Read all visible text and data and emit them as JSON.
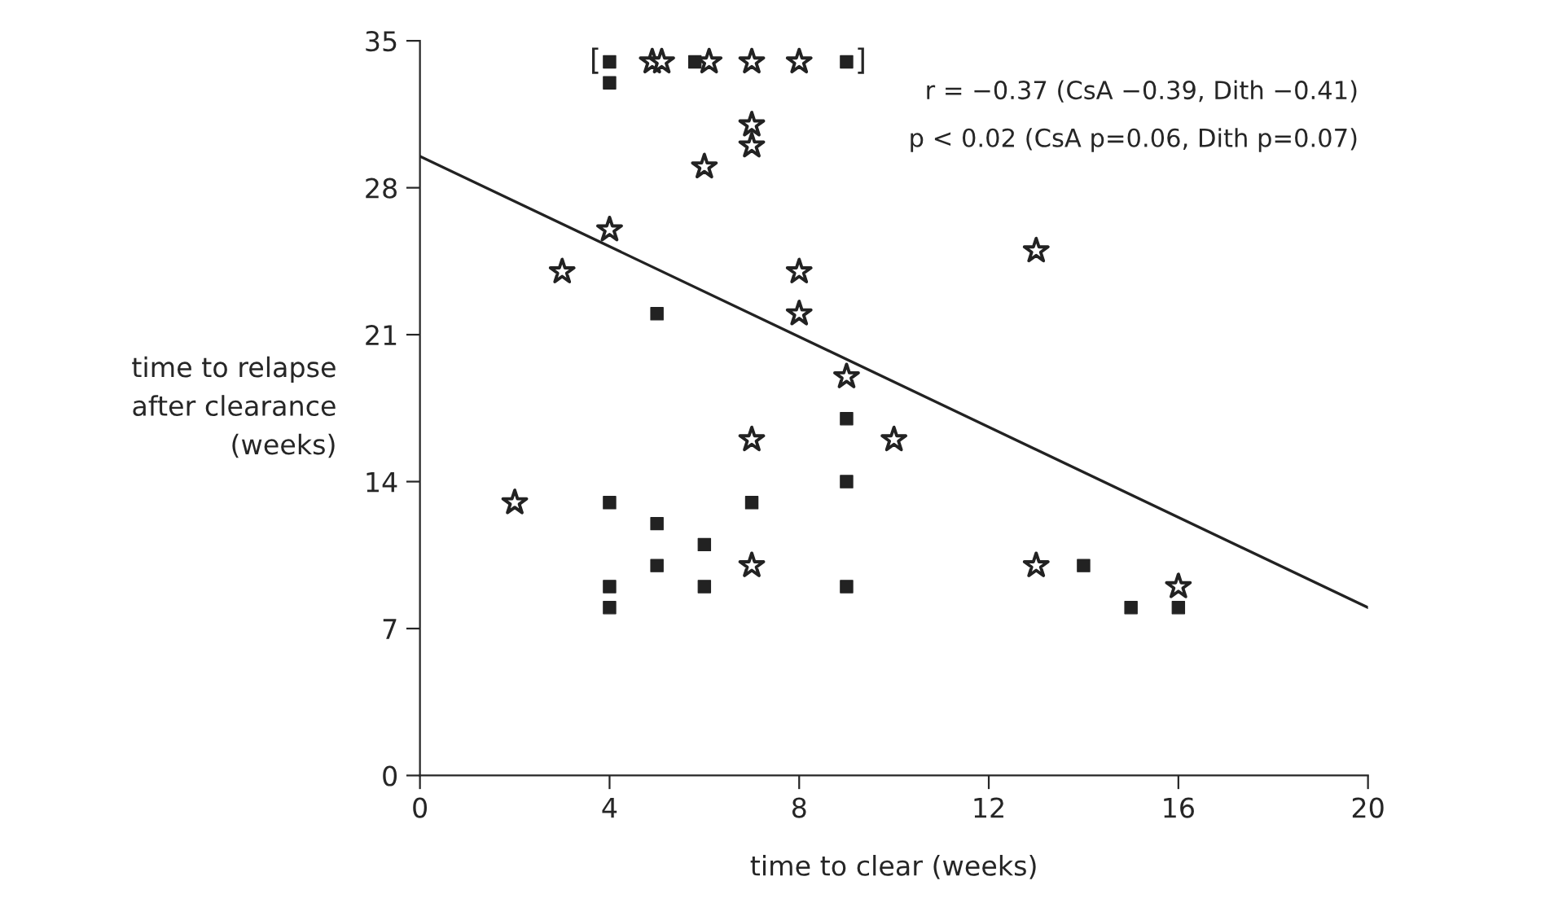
{
  "chart_data": {
    "type": "scatter",
    "xlabel": "time to clear (weeks)",
    "ylabel": "time to relapse\nafter clearance\n(weeks)",
    "xlim": [
      0,
      20
    ],
    "xticks": [
      0,
      4,
      8,
      12,
      16,
      20
    ],
    "ylim": [
      0,
      35
    ],
    "yticks": [
      0,
      7,
      14,
      21,
      28,
      35
    ],
    "grid": false,
    "legend": false,
    "series": [
      {
        "marker": "square",
        "color": "#222222",
        "x": [
          4,
          4,
          5.8,
          9,
          5,
          9,
          9,
          4,
          5,
          6,
          7,
          5,
          6,
          4,
          4,
          9,
          14,
          15,
          16
        ],
        "values": [
          34,
          33,
          34,
          34,
          22,
          17,
          14,
          13,
          12,
          11,
          13,
          10,
          9,
          9,
          8,
          9,
          10,
          8,
          8
        ]
      },
      {
        "marker": "star",
        "color": "#222222",
        "x": [
          4.9,
          5.1,
          6.1,
          7,
          8,
          7,
          7,
          6,
          4,
          3,
          8,
          8,
          9,
          10,
          7,
          2,
          7,
          13,
          13,
          16
        ],
        "values": [
          34,
          34,
          34,
          34,
          34,
          31,
          30,
          29,
          26,
          24,
          24,
          22,
          19,
          16,
          16,
          13,
          10,
          25,
          10,
          9
        ]
      },
      {
        "type": "line",
        "marker": "none",
        "line_style": "solid",
        "color": "#222222",
        "x": [
          0,
          20
        ],
        "values": [
          29.5,
          8
        ]
      }
    ],
    "annotations": [
      {
        "text": "[",
        "x": 3.7,
        "y": 34
      },
      {
        "text": "]",
        "x": 9.3,
        "y": 34
      },
      "r = −0.37 (CsA −0.39, Dith −0.41)",
      "p < 0.02 (CsA p=0.06, Dith p=0.07)"
    ]
  }
}
